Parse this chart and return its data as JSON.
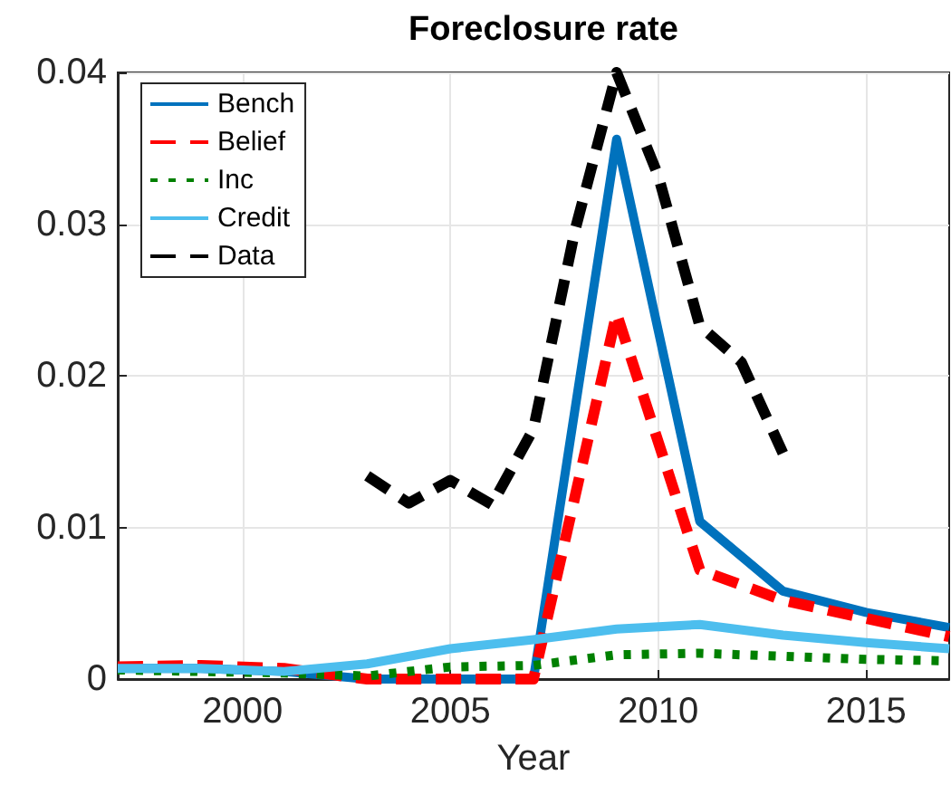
{
  "chart_data": {
    "type": "line",
    "title": "Foreclosure rate",
    "xlabel": "Year",
    "xlim": [
      1997,
      2017
    ],
    "xticks": [
      2000,
      2005,
      2010,
      2015
    ],
    "ylim": [
      0,
      0.04
    ],
    "yticks": [
      0,
      0.01,
      0.02,
      0.03,
      0.04
    ],
    "grid": true,
    "legend": "top left",
    "marker": "none",
    "x": [
      1997,
      1999,
      2001,
      2003,
      2005,
      2007,
      2009,
      2011,
      2013,
      2015,
      2017
    ],
    "series": [
      {
        "name": "Bench",
        "color": "#0072bd",
        "line_style": "solid",
        "values": [
          0.0007,
          0.0007,
          0.0005,
          0,
          0,
          0,
          0.0356,
          0.0104,
          0.0058,
          0.0044,
          0.0034
        ]
      },
      {
        "name": "Belief",
        "color": "#ff0000",
        "line_style": "dashed",
        "values": [
          0.0008,
          0.0009,
          0.0007,
          0,
          0,
          0,
          0.0241,
          0.0072,
          0.0052,
          0.004,
          0.0028
        ]
      },
      {
        "name": "Inc",
        "color": "#008000",
        "line_style": "dotted",
        "values": [
          0.0006,
          0.0005,
          0.0004,
          0.0002,
          0.0008,
          0.0009,
          0.0016,
          0.0017,
          0.0015,
          0.0013,
          0.0012
        ]
      },
      {
        "name": "Credit",
        "color": "#4dbeee",
        "line_style": "solid",
        "values": [
          0.0007,
          0.0007,
          0.0005,
          0.001,
          0.002,
          0.0026,
          0.0033,
          0.0036,
          0.0029,
          0.0024,
          0.002
        ]
      },
      {
        "name": "Data",
        "color": "#000000",
        "line_style": "dashed",
        "x": [
          2003,
          2004,
          2005,
          2006,
          2007,
          2008,
          2009,
          2010,
          2011,
          2012,
          2013
        ],
        "values": [
          0.0134,
          0.0116,
          0.0131,
          0.0115,
          0.0165,
          0.0296,
          0.04,
          0.0332,
          0.0233,
          0.0209,
          0.0149
        ]
      }
    ]
  }
}
